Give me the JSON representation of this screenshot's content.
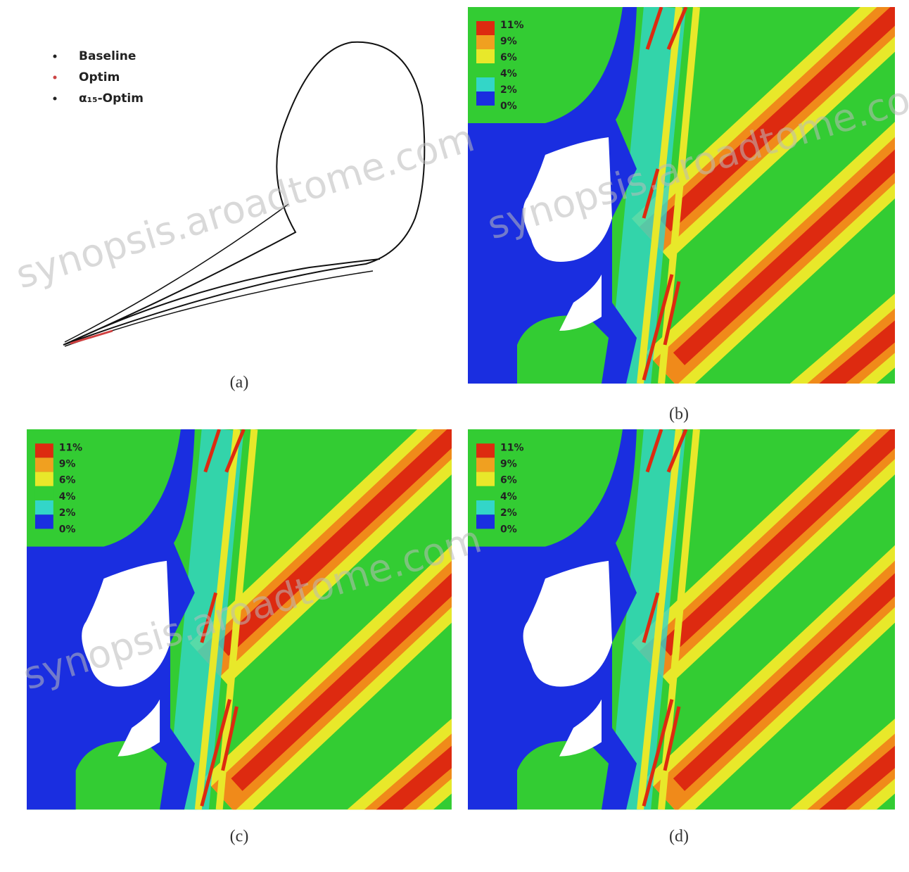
{
  "legend": [
    "Baseline",
    "Optim",
    "α₁₅-Optim"
  ],
  "colorbar_labels": [
    "11%",
    "9%",
    "6%",
    "4%",
    "2%",
    "0%"
  ],
  "panels": [
    {
      "caption": "(a)"
    },
    {
      "caption": "(b)"
    },
    {
      "caption": "(c)"
    },
    {
      "caption": "(d)"
    }
  ],
  "watermark": "synopsis.aroadtome.com"
}
